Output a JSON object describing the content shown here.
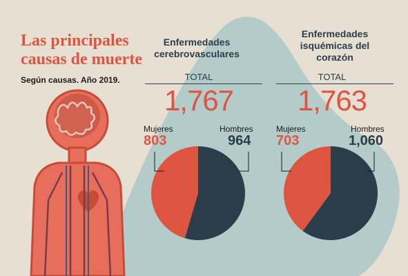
{
  "header": {
    "title_line1": "Las principales",
    "title_line2": "causas de muerte",
    "subtitle": "Según causas. Año 2019."
  },
  "colors": {
    "mujeres": "#dd5540",
    "hombres": "#2b3d4b",
    "backdrop": "#a9c9c9"
  },
  "panels": [
    {
      "title_line1": "Enfermedades",
      "title_line2": "cerebrovasculares",
      "title_line3": "",
      "total_label": "TOTAL",
      "total": "1,767",
      "mujeres_label": "Mujeres",
      "mujeres_value": "803",
      "hombres_label": "Hombres",
      "hombres_value": "964"
    },
    {
      "title_line1": "Enfermedades",
      "title_line2": "isquémicas del",
      "title_line3": "corazón",
      "total_label": "TOTAL",
      "total": "1,763",
      "mujeres_label": "Mujeres",
      "mujeres_value": "703",
      "hombres_label": "Hombres",
      "hombres_value": "1,060"
    }
  ],
  "chart_data": [
    {
      "type": "pie",
      "title": "Enfermedades cerebrovasculares",
      "categories": [
        "Mujeres",
        "Hombres"
      ],
      "values": [
        803,
        964
      ],
      "total": 1767
    },
    {
      "type": "pie",
      "title": "Enfermedades isquémicas del corazón",
      "categories": [
        "Mujeres",
        "Hombres"
      ],
      "values": [
        703,
        1060
      ],
      "total": 1763
    }
  ]
}
